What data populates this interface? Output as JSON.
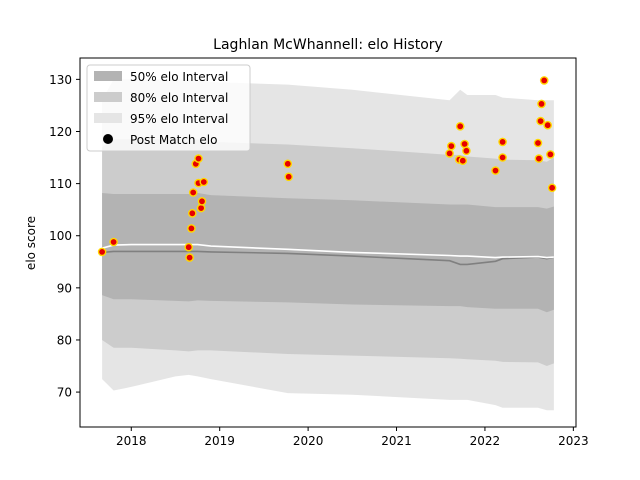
{
  "chart_data": {
    "type": "area",
    "title": "Laghlan McWhannell: elo History",
    "xlabel": "",
    "ylabel": "elo score",
    "xlim": [
      2017.42,
      2023.03
    ],
    "ylim": [
      63.3,
      134.1
    ],
    "xticks": [
      2018,
      2019,
      2020,
      2021,
      2022,
      2023
    ],
    "yticks": [
      70,
      80,
      90,
      100,
      110,
      120,
      130
    ],
    "legend_position": "upper-left",
    "legend": [
      "50% elo Interval",
      "80% elo Interval",
      "95% elo Interval",
      "Post Match elo"
    ],
    "colors": {
      "band50": "#b3b3b3",
      "band80": "#cccccc",
      "band95": "#e5e5e5",
      "median_line": "#808080",
      "mean_line": "#ffffff",
      "point_fill": "#e60000",
      "point_edge": "#ffd700"
    },
    "bands": {
      "x": [
        2017.67,
        2017.8,
        2018.0,
        2018.5,
        2018.65,
        2018.75,
        2018.9,
        2019.77,
        2020.5,
        2021.6,
        2021.72,
        2021.8,
        2022.12,
        2022.2,
        2022.6,
        2022.7,
        2022.78
      ],
      "p95_upper": [
        126,
        130,
        130,
        130,
        130,
        130,
        129.5,
        129,
        128,
        126,
        128,
        127,
        127,
        126.5,
        126,
        126,
        126
      ],
      "p95_lower": [
        72.5,
        70.3,
        71,
        73,
        73.3,
        73,
        72.5,
        69.8,
        69.5,
        68.5,
        68.5,
        68.5,
        67.5,
        67,
        67,
        66.5,
        66.5
      ],
      "p80_upper": [
        117,
        118.5,
        118.5,
        118.5,
        118.5,
        118.5,
        118,
        117.5,
        116.8,
        115.5,
        115.5,
        115.2,
        114.8,
        114.6,
        114.5,
        114.2,
        115
      ],
      "p80_lower": [
        80,
        78.5,
        78.5,
        78,
        77.8,
        78,
        78,
        77.3,
        77,
        76.5,
        76.4,
        76.3,
        76,
        75.8,
        75.7,
        75,
        75.5
      ],
      "p50_upper": [
        108.2,
        108,
        108,
        108,
        108,
        108.2,
        107.8,
        107.2,
        106.8,
        106,
        106,
        106,
        105.5,
        105.5,
        105.5,
        105.2,
        105.6
      ],
      "p50_lower": [
        88.6,
        87.8,
        87.8,
        87.5,
        87.4,
        87.6,
        87.5,
        87.2,
        86.8,
        86.5,
        86.5,
        86.3,
        86,
        86,
        86,
        85.3,
        85.8
      ],
      "median": [
        96.8,
        97,
        97,
        97,
        97,
        97,
        96.9,
        96.6,
        96.1,
        95.2,
        94.5,
        94.5,
        95.1,
        95.6,
        95.9,
        95.6,
        95.9
      ],
      "mean": [
        97.6,
        98.2,
        98.3,
        98.3,
        98.3,
        98.3,
        98,
        97.4,
        96.8,
        96.2,
        96.1,
        96.1,
        95.8,
        95.9,
        96,
        95.8,
        95.9
      ]
    },
    "points": [
      [
        2017.67,
        96.9
      ],
      [
        2017.8,
        98.8
      ],
      [
        2018.65,
        97.8
      ],
      [
        2018.66,
        95.8
      ],
      [
        2018.68,
        101.4
      ],
      [
        2018.69,
        104.3
      ],
      [
        2018.7,
        108.3
      ],
      [
        2018.73,
        113.8
      ],
      [
        2018.76,
        110.1
      ],
      [
        2018.76,
        114.8
      ],
      [
        2018.79,
        105.3
      ],
      [
        2018.8,
        106.6
      ],
      [
        2018.82,
        110.3
      ],
      [
        2019.77,
        113.8
      ],
      [
        2019.78,
        111.3
      ],
      [
        2021.6,
        115.8
      ],
      [
        2021.62,
        117.2
      ],
      [
        2021.72,
        121
      ],
      [
        2021.71,
        114.6
      ],
      [
        2021.75,
        114.4
      ],
      [
        2021.77,
        117.6
      ],
      [
        2021.79,
        116.3
      ],
      [
        2022.12,
        112.5
      ],
      [
        2022.2,
        118
      ],
      [
        2022.2,
        115
      ],
      [
        2022.6,
        117.8
      ],
      [
        2022.61,
        114.8
      ],
      [
        2022.63,
        122
      ],
      [
        2022.64,
        125.3
      ],
      [
        2022.67,
        129.8
      ],
      [
        2022.71,
        121.2
      ],
      [
        2022.74,
        115.6
      ],
      [
        2022.76,
        109.2
      ]
    ]
  }
}
